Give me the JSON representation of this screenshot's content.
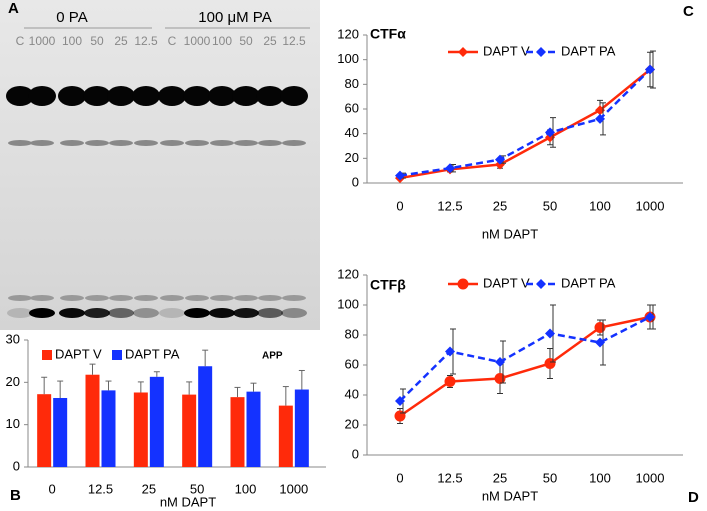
{
  "panel_labels": [
    "A",
    "B",
    "C",
    "D"
  ],
  "blot": {
    "groups": [
      "0 PA",
      "100 μM PA"
    ],
    "lanes": [
      "C",
      "1000",
      "100",
      "50",
      "25",
      "12.5",
      "C",
      "1000",
      "100",
      "50",
      "25",
      "12.5"
    ]
  },
  "chart_data": [
    {
      "type": "bar",
      "annotation": "APP",
      "xlabel": "nM DAPT",
      "categories": [
        "0",
        "12.5",
        "25",
        "50",
        "100",
        "1000"
      ],
      "series": [
        {
          "name": "DAPT V",
          "color": "#ff2a0a",
          "values": [
            17.2,
            21.8,
            17.6,
            17.1,
            16.5,
            14.5
          ],
          "errors": [
            4,
            2.5,
            2.5,
            3,
            2.3,
            4.5
          ]
        },
        {
          "name": "DAPT PA",
          "color": "#1432ff",
          "values": [
            16.3,
            18.1,
            21.3,
            23.8,
            17.8,
            18.3
          ],
          "errors": [
            4,
            2.2,
            1.2,
            3.8,
            2,
            4.5
          ]
        }
      ],
      "ylim": [
        0,
        30
      ],
      "yticks": [
        0,
        10,
        20,
        30
      ]
    },
    {
      "type": "line",
      "title": "CTFα",
      "xlabel": "nM DAPT",
      "categories": [
        "0",
        "12.5",
        "25",
        "50",
        "100",
        "1000"
      ],
      "series": [
        {
          "name": "DAPT V",
          "color": "#ff2a0a",
          "linestyle": "solid",
          "marker": "diamond",
          "values": [
            4,
            11,
            15,
            37,
            59,
            92
          ],
          "errors": [
            1,
            2,
            3,
            6,
            8,
            14
          ]
        },
        {
          "name": "DAPT PA",
          "color": "#1432ff",
          "linestyle": "dashed",
          "marker": "diamond",
          "values": [
            6,
            12,
            19,
            41,
            52,
            92
          ],
          "errors": [
            2,
            3,
            3,
            12,
            13,
            15
          ]
        }
      ],
      "ylim": [
        0,
        120
      ],
      "yticks": [
        0,
        20,
        40,
        60,
        80,
        100,
        120
      ]
    },
    {
      "type": "line",
      "title": "CTFβ",
      "xlabel": "nM DAPT",
      "categories": [
        "0",
        "12.5",
        "25",
        "50",
        "100",
        "1000"
      ],
      "series": [
        {
          "name": "DAPT V",
          "color": "#ff2a0a",
          "linestyle": "solid",
          "marker": "circle",
          "values": [
            26,
            49,
            51,
            61,
            85,
            92
          ],
          "errors": [
            5,
            4,
            10,
            10,
            5,
            8
          ]
        },
        {
          "name": "DAPT PA",
          "color": "#1432ff",
          "linestyle": "dashed",
          "marker": "diamond",
          "values": [
            36,
            69,
            62,
            81,
            75,
            92
          ],
          "errors": [
            8,
            15,
            14,
            19,
            15,
            8
          ]
        }
      ],
      "ylim": [
        0,
        120
      ],
      "yticks": [
        0,
        20,
        40,
        60,
        80,
        100,
        120
      ]
    }
  ]
}
